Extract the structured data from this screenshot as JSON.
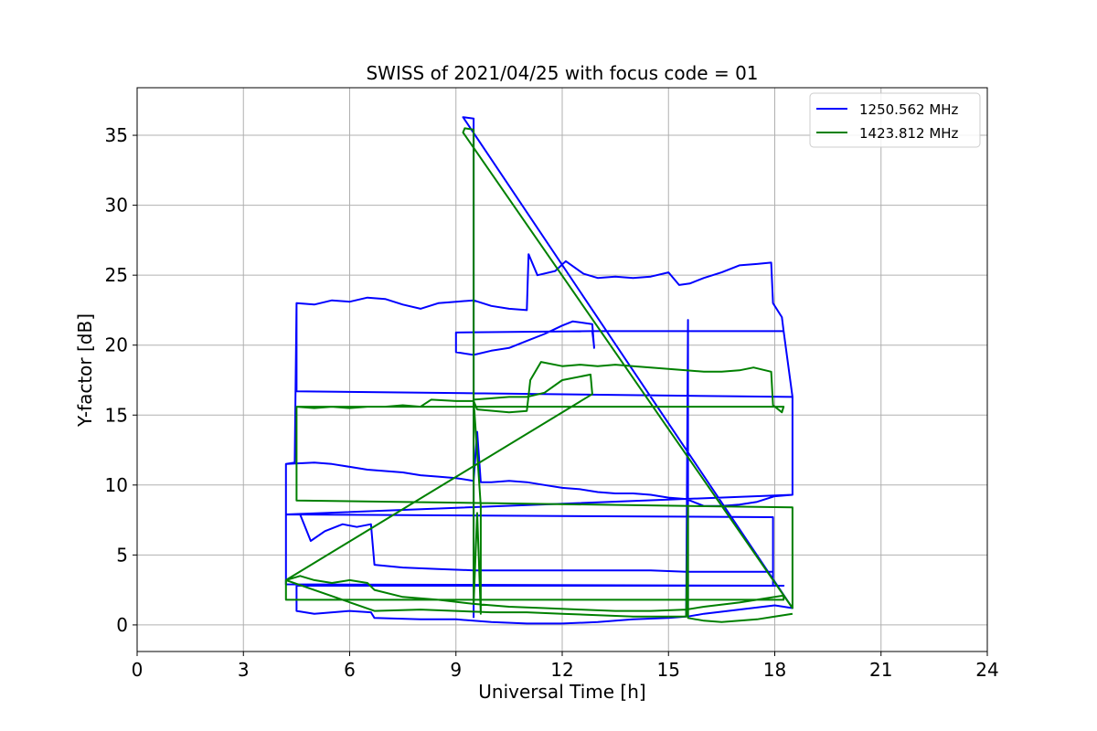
{
  "chart_data": {
    "type": "line",
    "title": "SWISS of 2021/04/25 with focus code = 01",
    "xlabel": "Universal Time [h]",
    "ylabel": "Y-factor [dB]",
    "xlim": [
      0,
      24
    ],
    "ylim": [
      -1.9,
      38.4
    ],
    "xticks": [
      0,
      3,
      6,
      9,
      12,
      15,
      18,
      21,
      24
    ],
    "yticks": [
      0,
      5,
      10,
      15,
      20,
      25,
      30,
      35
    ],
    "grid": true,
    "legend_position": "top-right",
    "series": [
      {
        "name": "1250.562 MHz",
        "color": "#0000ff",
        "points": [
          [
            4.5,
            23.0
          ],
          [
            5.0,
            22.9
          ],
          [
            5.5,
            23.2
          ],
          [
            6.0,
            23.1
          ],
          [
            6.5,
            23.4
          ],
          [
            7.0,
            23.3
          ],
          [
            7.5,
            22.9
          ],
          [
            8.0,
            22.6
          ],
          [
            8.5,
            23.0
          ],
          [
            9.0,
            23.1
          ],
          [
            9.5,
            23.2
          ],
          [
            10.0,
            22.8
          ],
          [
            10.5,
            22.6
          ],
          [
            11.0,
            22.5
          ],
          [
            11.05,
            26.5
          ],
          [
            11.3,
            25.0
          ],
          [
            11.8,
            25.3
          ],
          [
            12.1,
            26.0
          ],
          [
            12.6,
            25.1
          ],
          [
            13.0,
            24.8
          ],
          [
            13.5,
            24.9
          ],
          [
            14.0,
            24.8
          ],
          [
            14.5,
            24.9
          ],
          [
            15.0,
            25.2
          ],
          [
            15.3,
            24.3
          ],
          [
            15.6,
            24.4
          ],
          [
            16.0,
            24.8
          ],
          [
            16.5,
            25.2
          ],
          [
            17.0,
            25.7
          ],
          [
            17.5,
            25.8
          ],
          [
            17.9,
            25.9
          ],
          [
            17.95,
            23.0
          ],
          [
            18.2,
            22.0
          ],
          [
            18.25,
            21.0
          ],
          [
            12.8,
            21.0
          ],
          [
            9.0,
            20.9
          ],
          [
            9.0,
            19.5
          ],
          [
            9.5,
            19.3
          ],
          [
            10.0,
            19.6
          ],
          [
            10.5,
            19.8
          ],
          [
            11.0,
            20.3
          ],
          [
            11.5,
            20.8
          ],
          [
            12.0,
            21.4
          ],
          [
            12.3,
            21.7
          ],
          [
            12.85,
            21.5
          ],
          [
            12.9,
            19.8
          ],
          [
            12.9,
            19.9
          ],
          [
            12.85,
            21.0
          ],
          [
            18.25,
            21.0
          ],
          [
            18.5,
            16.3
          ],
          [
            4.5,
            16.7
          ],
          [
            4.5,
            23.0
          ],
          [
            4.45,
            11.6
          ],
          [
            4.2,
            11.5
          ],
          [
            5.0,
            11.6
          ],
          [
            5.5,
            11.5
          ],
          [
            6.0,
            11.3
          ],
          [
            6.5,
            11.1
          ],
          [
            7.0,
            11.0
          ],
          [
            7.5,
            10.9
          ],
          [
            8.0,
            10.7
          ],
          [
            8.5,
            10.6
          ],
          [
            9.0,
            10.5
          ],
          [
            9.5,
            10.3
          ],
          [
            9.6,
            13.8
          ],
          [
            9.7,
            10.2
          ],
          [
            10.0,
            10.2
          ],
          [
            10.5,
            10.3
          ],
          [
            11.0,
            10.2
          ],
          [
            11.5,
            10.0
          ],
          [
            12.0,
            9.8
          ],
          [
            12.5,
            9.7
          ],
          [
            13.0,
            9.5
          ],
          [
            13.5,
            9.4
          ],
          [
            14.0,
            9.4
          ],
          [
            14.5,
            9.3
          ],
          [
            15.0,
            9.1
          ],
          [
            15.5,
            9.0
          ],
          [
            16.0,
            8.5
          ],
          [
            16.5,
            8.5
          ],
          [
            17.0,
            8.6
          ],
          [
            17.5,
            8.8
          ],
          [
            18.0,
            9.2
          ],
          [
            18.5,
            9.3
          ],
          [
            18.5,
            16.3
          ],
          [
            18.5,
            9.3
          ],
          [
            4.2,
            7.9
          ],
          [
            17.95,
            7.7
          ],
          [
            17.95,
            2.8
          ],
          [
            18.25,
            2.8
          ],
          [
            4.2,
            2.9
          ],
          [
            4.2,
            11.5
          ],
          [
            4.2,
            7.9
          ],
          [
            4.6,
            7.9
          ],
          [
            4.9,
            6.0
          ],
          [
            5.3,
            6.7
          ],
          [
            5.8,
            7.2
          ],
          [
            6.2,
            7.0
          ],
          [
            6.6,
            7.2
          ],
          [
            6.7,
            4.3
          ],
          [
            7.5,
            4.1
          ],
          [
            8.5,
            4.0
          ],
          [
            9.5,
            3.9
          ],
          [
            10.5,
            3.9
          ],
          [
            11.5,
            3.9
          ],
          [
            12.5,
            3.9
          ],
          [
            13.5,
            3.9
          ],
          [
            14.5,
            3.9
          ],
          [
            15.5,
            3.8
          ],
          [
            16.5,
            3.8
          ],
          [
            17.5,
            3.8
          ],
          [
            17.95,
            3.8
          ],
          [
            17.95,
            2.8
          ],
          [
            4.5,
            2.8
          ],
          [
            4.5,
            1.0
          ],
          [
            5.0,
            0.8
          ],
          [
            6.0,
            1.0
          ],
          [
            6.6,
            0.9
          ],
          [
            6.7,
            0.5
          ],
          [
            8.0,
            0.4
          ],
          [
            9.0,
            0.4
          ],
          [
            10.0,
            0.2
          ],
          [
            11.0,
            0.1
          ],
          [
            12.0,
            0.1
          ],
          [
            13.0,
            0.2
          ],
          [
            14.0,
            0.4
          ],
          [
            15.0,
            0.5
          ],
          [
            15.5,
            0.6
          ],
          [
            15.55,
            21.8
          ],
          [
            15.55,
            0.6
          ],
          [
            16.0,
            0.8
          ],
          [
            17.0,
            1.1
          ],
          [
            18.0,
            1.4
          ],
          [
            18.5,
            1.2
          ],
          [
            9.2,
            36.3
          ],
          [
            9.5,
            36.2
          ],
          [
            9.5,
            0.5
          ]
        ]
      },
      {
        "name": "1423.812 MHz",
        "color": "#008000",
        "points": [
          [
            4.5,
            15.6
          ],
          [
            5.0,
            15.5
          ],
          [
            5.5,
            15.6
          ],
          [
            6.0,
            15.5
          ],
          [
            6.5,
            15.6
          ],
          [
            7.0,
            15.6
          ],
          [
            7.5,
            15.7
          ],
          [
            8.0,
            15.6
          ],
          [
            8.3,
            16.1
          ],
          [
            9.0,
            16.0
          ],
          [
            9.5,
            16.0
          ],
          [
            9.6,
            15.4
          ],
          [
            10.5,
            15.2
          ],
          [
            11.0,
            15.3
          ],
          [
            11.1,
            17.5
          ],
          [
            11.4,
            18.8
          ],
          [
            12.0,
            18.5
          ],
          [
            12.5,
            18.6
          ],
          [
            13.0,
            18.5
          ],
          [
            13.5,
            18.6
          ],
          [
            14.0,
            18.5
          ],
          [
            14.5,
            18.4
          ],
          [
            15.0,
            18.3
          ],
          [
            15.5,
            18.2
          ],
          [
            16.0,
            18.1
          ],
          [
            16.5,
            18.1
          ],
          [
            17.0,
            18.2
          ],
          [
            17.4,
            18.4
          ],
          [
            17.9,
            18.1
          ],
          [
            17.95,
            15.7
          ],
          [
            18.2,
            15.2
          ],
          [
            18.25,
            15.6
          ],
          [
            4.5,
            15.6
          ],
          [
            4.5,
            8.9
          ],
          [
            18.5,
            8.4
          ],
          [
            18.5,
            1.2
          ],
          [
            9.2,
            35.2
          ],
          [
            9.25,
            35.5
          ],
          [
            9.5,
            35.4
          ],
          [
            9.5,
            1.5
          ],
          [
            9.6,
            8.0
          ],
          [
            9.7,
            0.8
          ],
          [
            9.7,
            8.5
          ],
          [
            9.5,
            16.1
          ],
          [
            10.5,
            16.3
          ],
          [
            11.0,
            16.3
          ],
          [
            11.5,
            16.6
          ],
          [
            12.0,
            17.5
          ],
          [
            12.8,
            17.9
          ],
          [
            12.85,
            16.5
          ],
          [
            4.2,
            3.2
          ],
          [
            4.6,
            3.5
          ],
          [
            5.0,
            3.2
          ],
          [
            5.5,
            3.0
          ],
          [
            6.0,
            3.2
          ],
          [
            6.5,
            3.0
          ],
          [
            6.7,
            2.5
          ],
          [
            7.5,
            2.0
          ],
          [
            8.5,
            1.8
          ],
          [
            9.5,
            1.5
          ],
          [
            10.5,
            1.3
          ],
          [
            11.5,
            1.2
          ],
          [
            12.5,
            1.1
          ],
          [
            13.5,
            1.0
          ],
          [
            14.5,
            1.0
          ],
          [
            15.5,
            1.1
          ],
          [
            16.0,
            1.3
          ],
          [
            17.0,
            1.6
          ],
          [
            18.0,
            2.0
          ],
          [
            18.25,
            2.1
          ],
          [
            18.25,
            1.8
          ],
          [
            4.2,
            1.8
          ],
          [
            4.2,
            3.2
          ],
          [
            6.7,
            1.0
          ],
          [
            8.0,
            1.1
          ],
          [
            9.0,
            1.0
          ],
          [
            10.0,
            0.9
          ],
          [
            11.0,
            0.9
          ],
          [
            12.0,
            0.8
          ],
          [
            13.0,
            0.7
          ],
          [
            14.0,
            0.6
          ],
          [
            15.0,
            0.6
          ],
          [
            15.5,
            0.6
          ],
          [
            15.55,
            8.4
          ],
          [
            15.55,
            0.5
          ],
          [
            16.0,
            0.3
          ],
          [
            16.5,
            0.2
          ],
          [
            17.0,
            0.3
          ],
          [
            17.5,
            0.4
          ],
          [
            18.0,
            0.6
          ],
          [
            18.5,
            0.8
          ]
        ]
      }
    ]
  }
}
